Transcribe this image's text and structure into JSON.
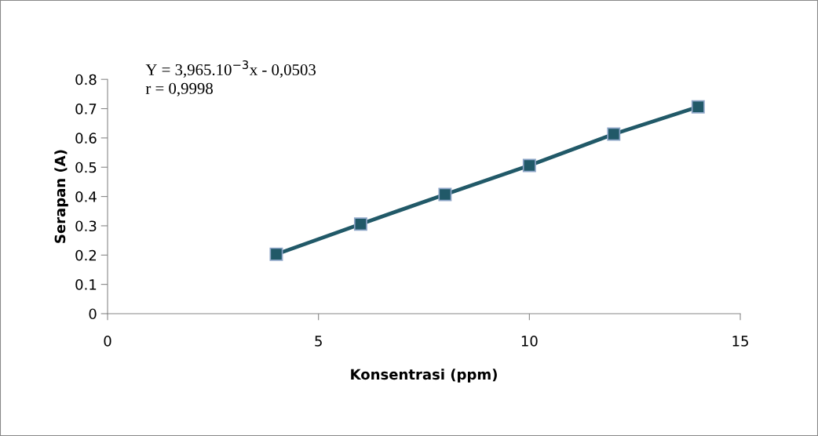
{
  "chart_data": {
    "type": "line",
    "xlabel": "Konsentrasi (ppm)",
    "ylabel": "Serapan (A)",
    "x": [
      4,
      6,
      8,
      10,
      12,
      14
    ],
    "series": [
      {
        "color": "#215968",
        "values": [
          0.203,
          0.306,
          0.407,
          0.506,
          0.613,
          0.706
        ]
      }
    ],
    "xlim": [
      0,
      15
    ],
    "xticks": [
      0,
      5,
      10,
      15
    ],
    "ylim": [
      0,
      0.8
    ],
    "yticks": [
      0,
      0.1,
      0.2,
      0.3,
      0.4,
      0.5,
      0.6,
      0.7,
      0.8
    ],
    "marker": "square",
    "line_style": "solid",
    "grid": false,
    "legend": false,
    "annotations": [
      "Y = 3,965.10$^{−3}$x - 0,0503",
      "r = 0,9998"
    ]
  }
}
